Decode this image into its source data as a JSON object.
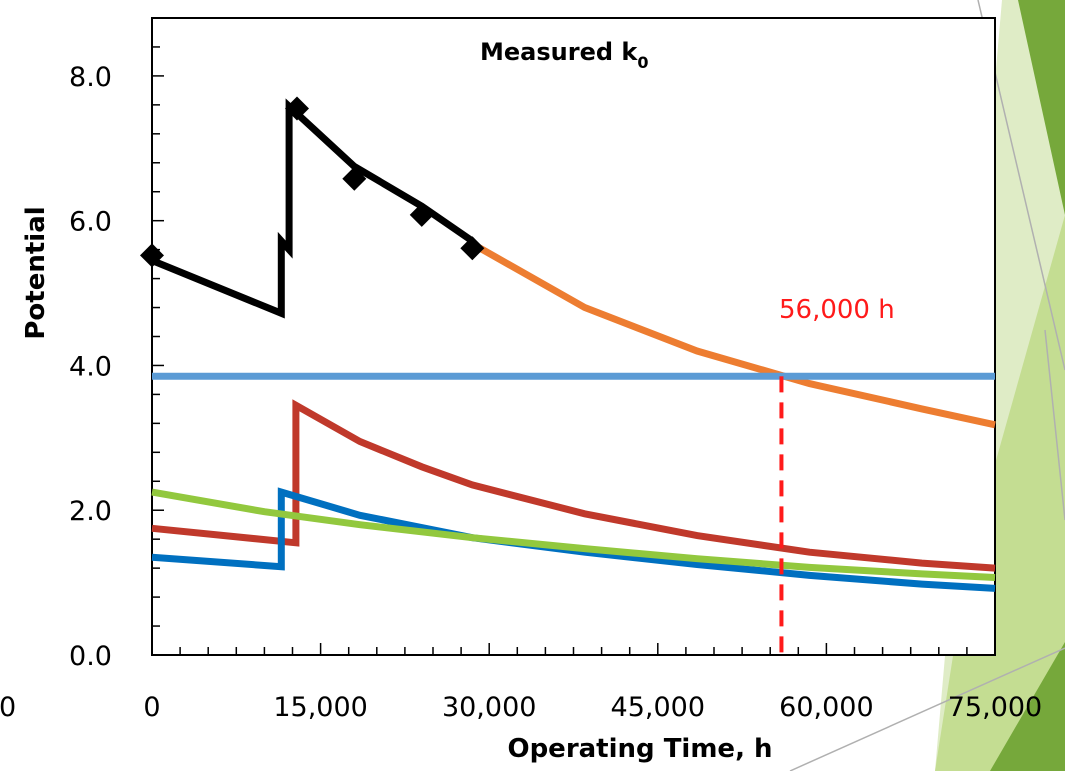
{
  "chart_data": {
    "type": "line",
    "title": "Measured k",
    "title_subscript": "0",
    "xlabel": "Operating Time, h",
    "ylabel": "Potential",
    "xlim": [
      0,
      75000
    ],
    "ylim": [
      0,
      8.8
    ],
    "x_ticks": [
      0,
      15000,
      30000,
      45000,
      60000,
      75000
    ],
    "x_tick_labels": [
      "0",
      "15,000",
      "30,000",
      "45,000",
      "60,000",
      "75,000"
    ],
    "x_stray_label": "0",
    "y_ticks": [
      0,
      2,
      4,
      6,
      8
    ],
    "y_tick_labels": [
      "0.0",
      "2.0",
      "4.0",
      "6.0",
      "8.0"
    ],
    "grid": false,
    "legend": "none",
    "series": [
      {
        "color": "#000000",
        "style": "solid",
        "points": [
          [
            0,
            5.45
          ],
          [
            11500,
            4.72
          ],
          [
            11500,
            5.72
          ],
          [
            12200,
            5.6
          ],
          [
            12200,
            7.58
          ],
          [
            18000,
            6.75
          ],
          [
            24000,
            6.2
          ],
          [
            28500,
            5.72
          ]
        ]
      },
      {
        "color": "#ed7d31",
        "style": "solid",
        "points": [
          [
            28500,
            5.68
          ],
          [
            38500,
            4.8
          ],
          [
            48500,
            4.2
          ],
          [
            58500,
            3.75
          ],
          [
            68500,
            3.4
          ],
          [
            75000,
            3.18
          ]
        ]
      },
      {
        "color": "#5b9bd5",
        "style": "solid",
        "points": [
          [
            0,
            3.85
          ],
          [
            75000,
            3.85
          ]
        ]
      },
      {
        "color": "#c0392b",
        "style": "solid",
        "points": [
          [
            0,
            1.75
          ],
          [
            12800,
            1.55
          ],
          [
            12800,
            3.45
          ],
          [
            18500,
            2.95
          ],
          [
            24000,
            2.6
          ],
          [
            28500,
            2.35
          ],
          [
            38500,
            1.95
          ],
          [
            48500,
            1.65
          ],
          [
            58500,
            1.42
          ],
          [
            68500,
            1.27
          ],
          [
            75000,
            1.2
          ]
        ]
      },
      {
        "color": "#0070c0",
        "style": "solid",
        "points": [
          [
            0,
            1.35
          ],
          [
            11500,
            1.22
          ],
          [
            11500,
            2.25
          ],
          [
            18500,
            1.93
          ],
          [
            28500,
            1.62
          ],
          [
            38500,
            1.42
          ],
          [
            48500,
            1.25
          ],
          [
            58500,
            1.1
          ],
          [
            68500,
            0.98
          ],
          [
            75000,
            0.92
          ]
        ]
      },
      {
        "color": "#92c83e",
        "style": "solid",
        "points": [
          [
            0,
            2.25
          ],
          [
            10000,
            1.98
          ],
          [
            18500,
            1.8
          ],
          [
            28500,
            1.62
          ],
          [
            38500,
            1.47
          ],
          [
            48500,
            1.33
          ],
          [
            58500,
            1.21
          ],
          [
            68500,
            1.12
          ],
          [
            75000,
            1.07
          ]
        ]
      }
    ],
    "markers": {
      "color": "#000000",
      "shape": "diamond",
      "points": [
        [
          0,
          5.52
        ],
        [
          12900,
          7.55
        ],
        [
          18000,
          6.58
        ],
        [
          24000,
          6.08
        ],
        [
          28500,
          5.62
        ]
      ]
    },
    "threshold": {
      "x": 56000,
      "color": "#ff1a1a",
      "label": "56,000 h"
    }
  },
  "decoration": {
    "accent_light": "#dfecc6",
    "accent_mid": "#c4dd92",
    "accent_dark": "#76a83b",
    "guide_line": "#b0b0b0"
  }
}
